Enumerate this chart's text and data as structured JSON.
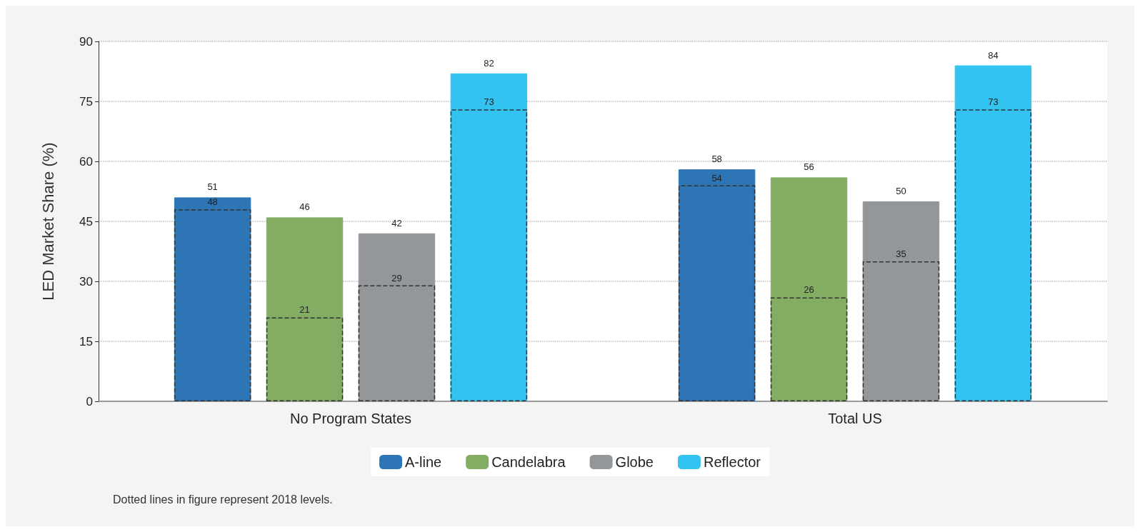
{
  "chart_data": {
    "type": "bar",
    "ylabel": "LED Market Share (%)",
    "categories": [
      "No Program States",
      "Total US"
    ],
    "series": [
      {
        "name": "A-line",
        "color": "#2e75b6",
        "values": [
          51,
          58
        ]
      },
      {
        "name": "Candelabra",
        "color": "#84ad64",
        "values": [
          46,
          56
        ]
      },
      {
        "name": "Globe",
        "color": "#94979a",
        "values": [
          42,
          50
        ]
      },
      {
        "name": "Reflector",
        "color": "#33c3f0",
        "values": [
          82,
          84
        ]
      },
      {
        "color": "#333333",
        "line_style": "dashed",
        "values": [
          48,
          54
        ]
      },
      {
        "color": "#333333",
        "line_style": "dashed",
        "values": [
          21,
          26
        ]
      },
      {
        "color": "#333333",
        "line_style": "dashed",
        "values": [
          29,
          35
        ]
      },
      {
        "color": "#333333",
        "line_style": "dashed",
        "values": [
          73,
          73
        ]
      }
    ],
    "ylim": [
      0,
      90
    ],
    "yticks": [
      0,
      15,
      30,
      45,
      60,
      75,
      90
    ],
    "grid": "y",
    "legend": "bottom",
    "data_labels": true,
    "annotations": [
      "Dotted lines in figure represent 2018 levels."
    ]
  }
}
